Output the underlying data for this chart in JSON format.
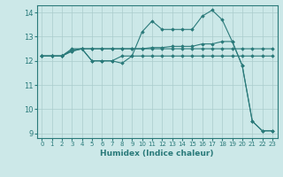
{
  "xlabel": "Humidex (Indice chaleur)",
  "xlim": [
    -0.5,
    23.5
  ],
  "ylim": [
    8.8,
    14.3
  ],
  "yticks": [
    9,
    10,
    11,
    12,
    13,
    14
  ],
  "xticks": [
    0,
    1,
    2,
    3,
    4,
    5,
    6,
    7,
    8,
    9,
    10,
    11,
    12,
    13,
    14,
    15,
    16,
    17,
    18,
    19,
    20,
    21,
    22,
    23
  ],
  "bg_color": "#cce8e8",
  "grid_color": "#aacccc",
  "line_color": "#2a7a7a",
  "lines": [
    [
      12.2,
      12.2,
      12.2,
      12.4,
      12.5,
      12.0,
      12.0,
      12.0,
      11.9,
      12.2,
      13.2,
      13.65,
      13.3,
      13.3,
      13.3,
      13.3,
      13.85,
      14.1,
      13.7,
      12.8,
      11.8,
      9.5,
      9.1,
      9.1
    ],
    [
      12.2,
      12.2,
      12.2,
      12.4,
      12.5,
      12.5,
      12.5,
      12.5,
      12.5,
      12.5,
      12.5,
      12.55,
      12.55,
      12.6,
      12.6,
      12.6,
      12.7,
      12.7,
      12.8,
      12.8,
      11.8,
      9.5,
      9.1,
      9.1
    ],
    [
      12.2,
      12.2,
      12.2,
      12.45,
      12.5,
      12.0,
      12.0,
      12.0,
      12.2,
      12.2,
      12.2,
      12.2,
      12.2,
      12.2,
      12.2,
      12.2,
      12.2,
      12.2,
      12.2,
      12.2,
      12.2,
      12.2,
      12.2,
      12.2
    ],
    [
      12.2,
      12.2,
      12.2,
      12.5,
      12.5,
      12.5,
      12.5,
      12.5,
      12.5,
      12.5,
      12.5,
      12.5,
      12.5,
      12.5,
      12.5,
      12.5,
      12.5,
      12.5,
      12.5,
      12.5,
      12.5,
      12.5,
      12.5,
      12.5
    ]
  ]
}
